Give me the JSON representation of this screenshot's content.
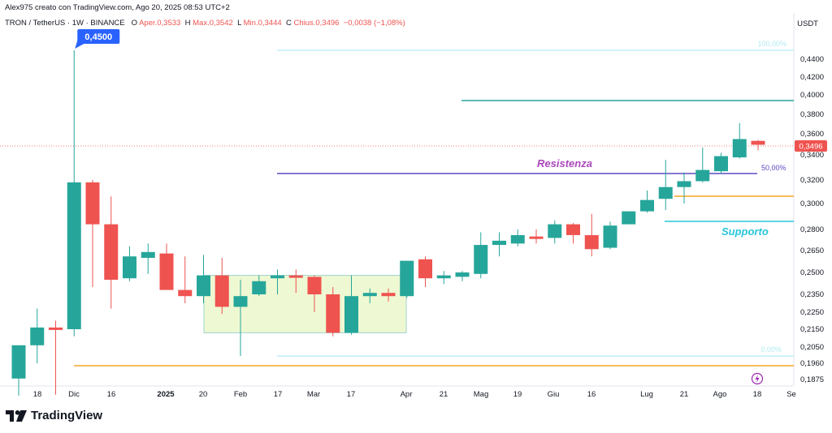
{
  "header": {
    "byline": "Alex975 creato con TradingView.com, Ago 20, 2025 08:53 UTC+2",
    "symbol": "TRON / TetherUS · 1W · BINANCE",
    "o_label": "O",
    "o_val": "Aper.0,3533",
    "h_label": "H",
    "h_val": "Max.0,3542",
    "l_label": "L",
    "l_val": "Min.0,3444",
    "c_label": "C",
    "c_val": "Chius.0,3496",
    "change": "−0,0038 (−1,08%)"
  },
  "currency": "USDT",
  "footer": {
    "brand": "TradingView"
  },
  "colors": {
    "up": "#26a69a",
    "down": "#ef5350",
    "resistance": "#5b4cc4",
    "support_label": "#26c6da",
    "resist_label": "#ab47bc",
    "fib": "#b2ebf2",
    "orange": "#f5a623",
    "teal_line": "#26a69a",
    "box_fill": "#eef8d2",
    "box_stroke": "#9fd3cb",
    "price_tag": "#ef5350",
    "callout": "#2962ff"
  },
  "chart_data": {
    "type": "candlestick",
    "ylim": [
      0.18,
      0.475
    ],
    "y_ticks": [
      "0,4400",
      "0,4200",
      "0,4000",
      "0,3800",
      "0,3600",
      "0,3400",
      "0,3200",
      "0,3000",
      "0,2800",
      "0,2650",
      "0,2500",
      "0,2350",
      "0,2250",
      "0,2150",
      "0,2050",
      "0,1960",
      "0,1875"
    ],
    "x_ticks": [
      "18",
      "Dic",
      "16",
      "2025",
      "20",
      "Feb",
      "17",
      "Mar",
      "17",
      "Apr",
      "21",
      "Mag",
      "19",
      "Giu",
      "16",
      "Lug",
      "21",
      "Ago",
      "18",
      "Se"
    ],
    "candles": [
      {
        "o": 0.188,
        "h": 0.206,
        "l": 0.179,
        "c": 0.206
      },
      {
        "o": 0.206,
        "h": 0.227,
        "l": 0.196,
        "c": 0.216
      },
      {
        "o": 0.216,
        "h": 0.22,
        "l": 0.1795,
        "c": 0.215
      },
      {
        "o": 0.215,
        "h": 0.45,
        "l": 0.211,
        "c": 0.318
      },
      {
        "o": 0.318,
        "h": 0.32,
        "l": 0.24,
        "c": 0.284
      },
      {
        "o": 0.284,
        "h": 0.306,
        "l": 0.227,
        "c": 0.245
      },
      {
        "o": 0.246,
        "h": 0.268,
        "l": 0.244,
        "c": 0.261
      },
      {
        "o": 0.26,
        "h": 0.27,
        "l": 0.249,
        "c": 0.264
      },
      {
        "o": 0.263,
        "h": 0.27,
        "l": 0.238,
        "c": 0.238
      },
      {
        "o": 0.238,
        "h": 0.261,
        "l": 0.23,
        "c": 0.234
      },
      {
        "o": 0.234,
        "h": 0.262,
        "l": 0.23,
        "c": 0.248
      },
      {
        "o": 0.248,
        "h": 0.26,
        "l": 0.224,
        "c": 0.228
      },
      {
        "o": 0.228,
        "h": 0.245,
        "l": 0.2,
        "c": 0.234
      },
      {
        "o": 0.235,
        "h": 0.248,
        "l": 0.234,
        "c": 0.244
      },
      {
        "o": 0.246,
        "h": 0.252,
        "l": 0.235,
        "c": 0.248
      },
      {
        "o": 0.248,
        "h": 0.252,
        "l": 0.236,
        "c": 0.247
      },
      {
        "o": 0.247,
        "h": 0.248,
        "l": 0.225,
        "c": 0.235
      },
      {
        "o": 0.235,
        "h": 0.24,
        "l": 0.211,
        "c": 0.213
      },
      {
        "o": 0.213,
        "h": 0.248,
        "l": 0.212,
        "c": 0.234
      },
      {
        "o": 0.234,
        "h": 0.239,
        "l": 0.23,
        "c": 0.236
      },
      {
        "o": 0.236,
        "h": 0.239,
        "l": 0.231,
        "c": 0.234
      },
      {
        "o": 0.234,
        "h": 0.256,
        "l": 0.233,
        "c": 0.258
      },
      {
        "o": 0.259,
        "h": 0.261,
        "l": 0.24,
        "c": 0.246
      },
      {
        "o": 0.246,
        "h": 0.251,
        "l": 0.242,
        "c": 0.248
      },
      {
        "o": 0.247,
        "h": 0.251,
        "l": 0.244,
        "c": 0.25
      },
      {
        "o": 0.249,
        "h": 0.278,
        "l": 0.246,
        "c": 0.269
      },
      {
        "o": 0.269,
        "h": 0.278,
        "l": 0.261,
        "c": 0.272
      },
      {
        "o": 0.27,
        "h": 0.28,
        "l": 0.268,
        "c": 0.276
      },
      {
        "o": 0.275,
        "h": 0.28,
        "l": 0.27,
        "c": 0.274
      },
      {
        "o": 0.274,
        "h": 0.287,
        "l": 0.27,
        "c": 0.284
      },
      {
        "o": 0.284,
        "h": 0.285,
        "l": 0.27,
        "c": 0.276
      },
      {
        "o": 0.276,
        "h": 0.292,
        "l": 0.261,
        "c": 0.266
      },
      {
        "o": 0.267,
        "h": 0.286,
        "l": 0.266,
        "c": 0.283
      },
      {
        "o": 0.284,
        "h": 0.294,
        "l": 0.284,
        "c": 0.294
      },
      {
        "o": 0.294,
        "h": 0.311,
        "l": 0.293,
        "c": 0.303
      },
      {
        "o": 0.304,
        "h": 0.336,
        "l": 0.295,
        "c": 0.314
      },
      {
        "o": 0.314,
        "h": 0.326,
        "l": 0.3,
        "c": 0.319
      },
      {
        "o": 0.319,
        "h": 0.347,
        "l": 0.318,
        "c": 0.328
      },
      {
        "o": 0.327,
        "h": 0.342,
        "l": 0.325,
        "c": 0.339
      },
      {
        "o": 0.338,
        "h": 0.371,
        "l": 0.337,
        "c": 0.355
      },
      {
        "o": 0.3533,
        "h": 0.3542,
        "l": 0.3444,
        "c": 0.3496
      }
    ],
    "annotations": {
      "high_callout": "0,4500",
      "last_price": "0,3496",
      "resistance_label": "Resistenza",
      "support_label": "Supporto",
      "fib_100": "100,00%",
      "fib_50": "50,00%",
      "fib_0": "0,00%"
    }
  }
}
